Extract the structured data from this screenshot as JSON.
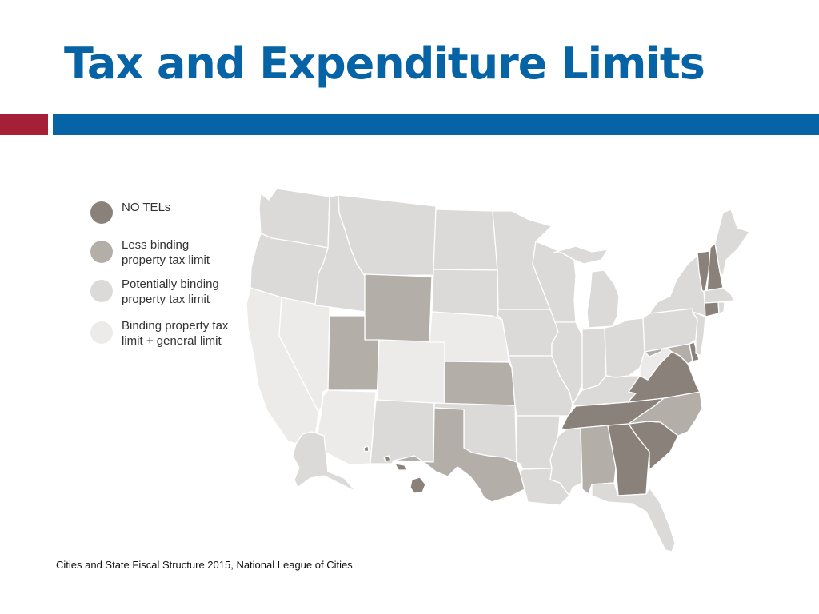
{
  "title": "Tax and Expenditure Limits",
  "colors": {
    "title_blue": "#0563a6",
    "accent_red": "#a51f36"
  },
  "legend": [
    {
      "key": "none",
      "label_line1": "NO TELs",
      "label_line2": "",
      "color": "#8a827a"
    },
    {
      "key": "less",
      "label_line1": "Less binding",
      "label_line2": "property tax limit",
      "color": "#b3aea8"
    },
    {
      "key": "potential",
      "label_line1": "Potentially binding",
      "label_line2": "property tax limit",
      "color": "#dcdad8"
    },
    {
      "key": "binding",
      "label_line1": "Binding property tax",
      "label_line2": "limit + general limit",
      "color": "#ecebea"
    }
  ],
  "map": {
    "states": {
      "WA": "potential",
      "OR": "potential",
      "CA": "binding",
      "NV": "binding",
      "ID": "potential",
      "MT": "potential",
      "WY": "less",
      "UT": "less",
      "CO": "binding",
      "AZ": "binding",
      "NM": "potential",
      "ND": "potential",
      "SD": "potential",
      "NE": "binding",
      "KS": "less",
      "OK": "potential",
      "TX": "less",
      "MN": "potential",
      "IA": "potential",
      "MO": "potential",
      "AR": "potential",
      "LA": "potential",
      "WI": "potential",
      "IL": "potential",
      "MI": "potential",
      "IN": "potential",
      "OH": "potential",
      "KY": "potential",
      "TN": "none",
      "MS": "potential",
      "AL": "less",
      "GA": "none",
      "FL": "potential",
      "SC": "none",
      "NC": "less",
      "VA": "none",
      "WV": "binding",
      "PA": "potential",
      "NY": "potential",
      "VT": "none",
      "NH": "none",
      "ME": "potential",
      "MA": "potential",
      "CT": "none",
      "RI": "potential",
      "NJ": "potential",
      "DE": "none",
      "MD": "less",
      "AK": "potential",
      "HI": "none"
    }
  },
  "source": "Cities and State Fiscal Structure 2015, National League of Cities"
}
